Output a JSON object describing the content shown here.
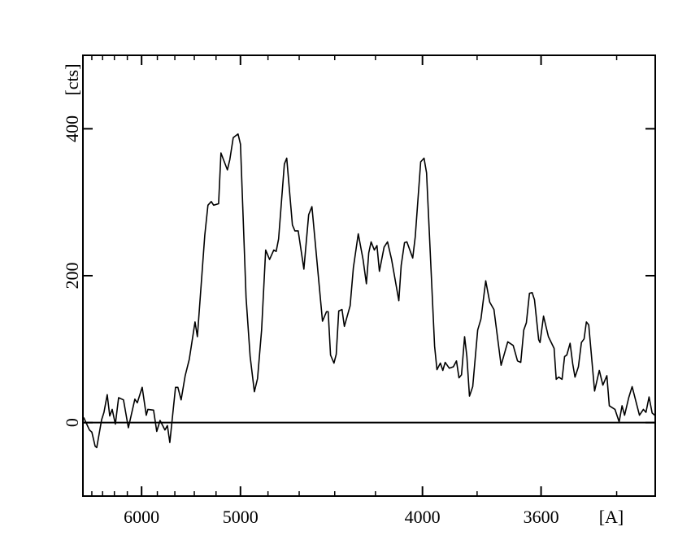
{
  "chart_data": {
    "type": "line",
    "title": "",
    "xlabel": "[A]",
    "ylabel": "[cts]",
    "x_scale": "inverse-square wavelength (1/λ²), wavelength decreasing to the right",
    "xlim": [
      6980,
      3310
    ],
    "ylim": [
      -100,
      500
    ],
    "grid": false,
    "x_major_ticks": [
      6000,
      5000,
      4000,
      3600
    ],
    "x_tick_labels": [
      "6000",
      "5000",
      "4000",
      "3600"
    ],
    "x_minor_ticks": [
      6800,
      6600,
      6400,
      6200,
      5800,
      5600,
      5400,
      5200,
      4800,
      4600,
      4400,
      4200,
      3800,
      3400
    ],
    "y_major_ticks": [
      0,
      200,
      400
    ],
    "y_tick_labels": [
      "0",
      "200",
      "400"
    ],
    "reference_line_y": 0,
    "line_color": "#000000",
    "series": [
      {
        "x": [
          6964,
          6847,
          6799,
          6737,
          6707,
          6618,
          6575,
          6519,
          6477,
          6436,
          6384,
          6332,
          6257,
          6185,
          6092,
          6058,
          5992,
          5939,
          5918,
          5846,
          5807,
          5768,
          5711,
          5683,
          5655,
          5593,
          5567,
          5533,
          5491,
          5450,
          5393,
          5370,
          5301,
          5272,
          5242,
          5221,
          5178,
          5158,
          5104,
          5084,
          5057,
          5019,
          5000,
          4957,
          4927,
          4896,
          4873,
          4844,
          4816,
          4789,
          4761,
          4745,
          4729,
          4692,
          4677,
          4641,
          4626,
          4606,
          4572,
          4544,
          4525,
          4466,
          4444,
          4435,
          4422,
          4404,
          4392,
          4379,
          4362,
          4350,
          4321,
          4305,
          4281,
          4258,
          4242,
          4231,
          4220,
          4205,
          4193,
          4182,
          4161,
          4146,
          4128,
          4097,
          4087,
          4073,
          4063,
          4039,
          4029,
          4007,
          3994,
          3984,
          3953,
          3944,
          3931,
          3922,
          3913,
          3898,
          3883,
          3872,
          3863,
          3854,
          3843,
          3835,
          3826,
          3815,
          3798,
          3787,
          3771,
          3758,
          3744,
          3721,
          3700,
          3683,
          3670,
          3660,
          3651,
          3643,
          3634,
          3626,
          3619,
          3607,
          3603,
          3593,
          3579,
          3563,
          3557,
          3550,
          3541,
          3534,
          3528,
          3519,
          3512,
          3506,
          3497,
          3489,
          3482,
          3476,
          3470,
          3455,
          3443,
          3434,
          3424,
          3418,
          3404,
          3394,
          3387,
          3381,
          3371,
          3363,
          3346,
          3337,
          3331,
          3324,
          3317,
          3311
        ],
        "y": [
          7,
          -10,
          -13,
          -32,
          -34,
          4,
          14,
          38,
          9,
          18,
          -2,
          34,
          31,
          -7,
          32,
          27,
          48,
          10,
          18,
          17,
          -12,
          3,
          -10,
          -4,
          -27,
          48,
          48,
          31,
          64,
          86,
          137,
          117,
          255,
          296,
          301,
          296,
          298,
          367,
          344,
          358,
          388,
          393,
          379,
          170,
          90,
          42,
          60,
          126,
          235,
          222,
          235,
          233,
          250,
          352,
          360,
          269,
          261,
          261,
          209,
          283,
          294,
          138,
          151,
          151,
          92,
          81,
          93,
          152,
          154,
          131,
          159,
          211,
          257,
          222,
          189,
          231,
          246,
          235,
          241,
          206,
          239,
          246,
          222,
          166,
          214,
          245,
          246,
          224,
          253,
          355,
          360,
          340,
          104,
          72,
          81,
          71,
          82,
          74,
          76,
          84,
          61,
          65,
          117,
          90,
          36,
          49,
          126,
          141,
          193,
          164,
          154,
          78,
          110,
          105,
          84,
          82,
          126,
          136,
          176,
          177,
          167,
          113,
          109,
          145,
          117,
          101,
          59,
          62,
          59,
          90,
          92,
          108,
          80,
          62,
          76,
          109,
          114,
          137,
          133,
          43,
          71,
          51,
          64,
          23,
          18,
          1,
          23,
          10,
          34,
          49,
          10,
          18,
          14,
          35,
          13,
          10
        ]
      }
    ]
  }
}
